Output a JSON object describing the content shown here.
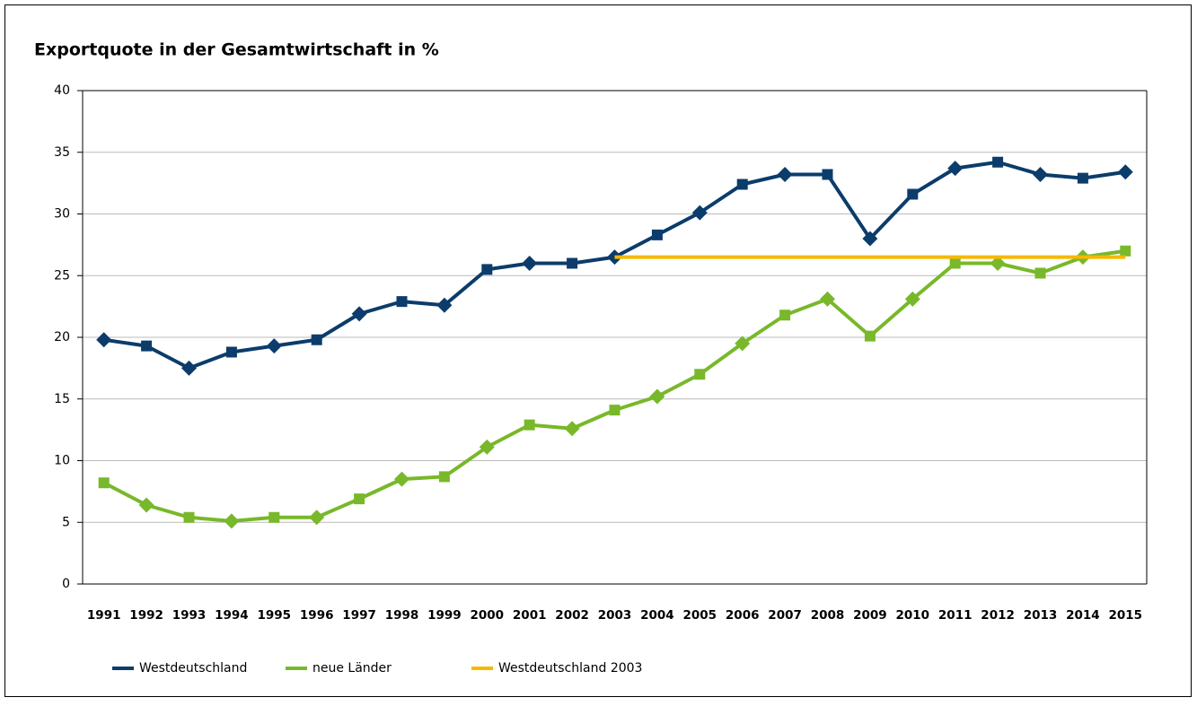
{
  "chart_data": {
    "type": "line",
    "title": "Exportquote in der Gesamtwirtschaft in %",
    "categories": [
      "1991",
      "1992",
      "1993",
      "1994",
      "1995",
      "1996",
      "1997",
      "1998",
      "1999",
      "2000",
      "2001",
      "2002",
      "2003",
      "2004",
      "2005",
      "2006",
      "2007",
      "2008",
      "2009",
      "2010",
      "2011",
      "2012",
      "2013",
      "2014",
      "2015"
    ],
    "series": [
      {
        "name": "Westdeutschland",
        "color": "#0b3c6b",
        "values": [
          19.8,
          19.3,
          17.5,
          18.8,
          19.3,
          19.8,
          21.9,
          22.9,
          22.6,
          25.5,
          26.0,
          26.0,
          26.5,
          28.3,
          30.1,
          32.4,
          33.2,
          33.2,
          28.0,
          31.6,
          33.7,
          34.2,
          33.2,
          32.9,
          33.4
        ]
      },
      {
        "name": "neue Länder",
        "color": "#78b82a",
        "values": [
          8.2,
          6.4,
          5.4,
          5.1,
          5.4,
          5.4,
          6.9,
          8.5,
          8.7,
          11.1,
          12.9,
          12.6,
          14.1,
          15.2,
          17.0,
          19.5,
          21.8,
          23.1,
          20.1,
          23.1,
          26.0,
          26.0,
          25.2,
          26.5,
          27.0
        ]
      },
      {
        "name": "Westdeutschland 2003",
        "color": "#f5b800",
        "values": [
          null,
          null,
          null,
          null,
          null,
          null,
          null,
          null,
          null,
          null,
          null,
          null,
          26.5,
          26.5,
          26.5,
          26.5,
          26.5,
          26.5,
          26.5,
          26.5,
          26.5,
          26.5,
          26.5,
          26.5,
          26.5
        ]
      }
    ],
    "ylim": [
      0,
      40
    ],
    "yticks": [
      0,
      5,
      10,
      15,
      20,
      25,
      30,
      35,
      40
    ],
    "grid": true,
    "legend": "bottom"
  }
}
